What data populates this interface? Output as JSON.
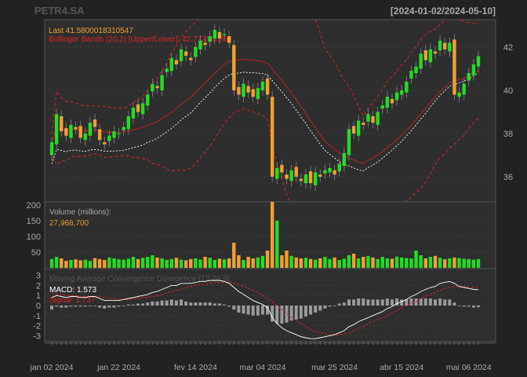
{
  "header": {
    "symbol": "PETR4.SA",
    "range": "[2024-01-02/2024-05-10]"
  },
  "colors": {
    "background": "#222222",
    "panel": "#2e2e2e",
    "grid": "#3c3c3c",
    "axis_text": "#aaaaaa",
    "up": "#22dd22",
    "down": "#f0a030",
    "bbands": "#dd2222",
    "sma": "#ffffff",
    "macd": "#ffffff",
    "signal": "#dd2222",
    "histogram": "#999999",
    "last_label": "#f0a030",
    "bb_label": "#dd2222",
    "vol_label": "#aaaaaa",
    "vol_value": "#f0a030"
  },
  "price_panel": {
    "legend": {
      "last": "Last 41.5800018310547",
      "bbands": "Bollinger Bands (20,2) [Upper/Lower]: 42.772/38.867"
    },
    "y_ticks": [
      36,
      38,
      40,
      42
    ]
  },
  "volume_panel": {
    "label": "Volume (millions):",
    "value": "27,968,700",
    "y_ticks": [
      50,
      100,
      150,
      200
    ]
  },
  "macd_panel": {
    "label": "Moving Average Convergence Divergence (12,26,9):",
    "macd": "MACD: 1.573",
    "signal": "Signal: 1.737",
    "y_ticks": [
      3,
      2,
      1,
      0,
      -1,
      -2,
      -3
    ]
  },
  "x_labels": [
    "jan 02 2024",
    "jan 22 2024",
    "fev 14 2024",
    "mar 04 2024",
    "mar 25 2024",
    "abr 15 2024",
    "mai 06 2024"
  ],
  "chart_data": {
    "type": "candlestick",
    "symbol": "PETR4.SA",
    "period": [
      "2024-01-02",
      "2024-05-10"
    ],
    "ohlc_close": [
      37.6,
      38.9,
      38.1,
      37.9,
      38.4,
      38.2,
      37.8,
      38.0,
      38.5,
      38.3,
      37.7,
      37.5,
      37.9,
      38.1,
      38.0,
      38.3,
      38.8,
      39.2,
      39.0,
      39.4,
      39.8,
      40.3,
      40.1,
      40.7,
      41.0,
      41.5,
      41.2,
      41.9,
      41.6,
      41.4,
      42.0,
      42.3,
      42.1,
      42.5,
      42.8,
      42.4,
      42.6,
      42.2,
      40.0,
      39.8,
      40.3,
      39.9,
      39.7,
      40.1,
      40.4,
      39.8,
      36.0,
      36.4,
      36.2,
      35.9,
      36.3,
      36.0,
      35.8,
      36.1,
      35.7,
      36.2,
      36.0,
      36.3,
      36.4,
      36.1,
      36.6,
      37.1,
      38.2,
      38.0,
      38.6,
      38.4,
      38.9,
      38.5,
      39.0,
      39.3,
      39.7,
      39.4,
      39.9,
      40.0,
      40.4,
      40.9,
      41.1,
      41.7,
      41.4,
      41.9,
      41.7,
      42.3,
      41.9,
      42.2,
      39.8,
      39.9,
      40.3,
      40.8,
      41.2,
      41.58
    ],
    "volume_millions": [
      28,
      35,
      30,
      22,
      25,
      27,
      24,
      26,
      22,
      31,
      28,
      25,
      33,
      30,
      27,
      26,
      29,
      35,
      28,
      32,
      35,
      40,
      33,
      30,
      25,
      28,
      32,
      26,
      24,
      28,
      30,
      26,
      35,
      32,
      25,
      29,
      27,
      30,
      80,
      40,
      25,
      35,
      30,
      33,
      38,
      55,
      215,
      150,
      40,
      55,
      38,
      33,
      30,
      32,
      28,
      26,
      30,
      35,
      28,
      33,
      25,
      29,
      40,
      45,
      30,
      35,
      38,
      33,
      28,
      35,
      30,
      29,
      36,
      33,
      31,
      30,
      55,
      40,
      30,
      35,
      38,
      32,
      27,
      30,
      33,
      31,
      29,
      28,
      26,
      28
    ],
    "macd": [
      0.8,
      1.0,
      0.9,
      0.8,
      0.9,
      0.9,
      0.8,
      0.8,
      0.9,
      0.9,
      0.7,
      0.5,
      0.5,
      0.5,
      0.5,
      0.6,
      0.7,
      0.8,
      0.9,
      1.0,
      1.1,
      1.3,
      1.4,
      1.6,
      1.8,
      2.0,
      2.0,
      2.2,
      2.2,
      2.2,
      2.3,
      2.4,
      2.4,
      2.5,
      2.5,
      2.5,
      2.4,
      2.2,
      1.8,
      1.4,
      1.1,
      0.8,
      0.5,
      0.3,
      0.1,
      -0.2,
      -1.2,
      -1.8,
      -2.2,
      -2.5,
      -2.7,
      -2.9,
      -3.1,
      -3.2,
      -3.3,
      -3.3,
      -3.2,
      -3.1,
      -3.0,
      -2.9,
      -2.7,
      -2.5,
      -2.1,
      -1.9,
      -1.6,
      -1.4,
      -1.2,
      -1.0,
      -0.8,
      -0.6,
      -0.3,
      -0.1,
      0.2,
      0.4,
      0.6,
      0.9,
      1.1,
      1.4,
      1.6,
      1.8,
      1.9,
      2.2,
      2.3,
      2.4,
      2.2,
      1.9,
      1.8,
      1.7,
      1.6,
      1.573
    ],
    "signal": [
      1.2,
      1.1,
      1.1,
      1.0,
      1.0,
      1.0,
      0.9,
      0.9,
      0.9,
      0.9,
      0.9,
      0.8,
      0.7,
      0.7,
      0.6,
      0.6,
      0.6,
      0.7,
      0.7,
      0.8,
      0.8,
      0.9,
      1.0,
      1.1,
      1.3,
      1.4,
      1.5,
      1.6,
      1.8,
      1.9,
      2.0,
      2.1,
      2.1,
      2.2,
      2.3,
      2.3,
      2.3,
      2.3,
      2.2,
      2.1,
      1.9,
      1.7,
      1.5,
      1.3,
      1.0,
      0.7,
      0.4,
      0.0,
      -0.4,
      -0.8,
      -1.2,
      -1.5,
      -1.8,
      -2.1,
      -2.4,
      -2.6,
      -2.7,
      -2.8,
      -2.9,
      -2.9,
      -2.9,
      -2.8,
      -2.7,
      -2.5,
      -2.3,
      -2.1,
      -1.8,
      -1.6,
      -1.4,
      -1.2,
      -1.0,
      -0.7,
      -0.5,
      -0.2,
      0.0,
      0.2,
      0.4,
      0.7,
      0.9,
      1.1,
      1.3,
      1.5,
      1.7,
      1.8,
      1.9,
      1.9,
      1.9,
      1.8,
      1.8,
      1.737
    ],
    "bb_upper_last": 42.772,
    "bb_lower_last": 38.867
  }
}
